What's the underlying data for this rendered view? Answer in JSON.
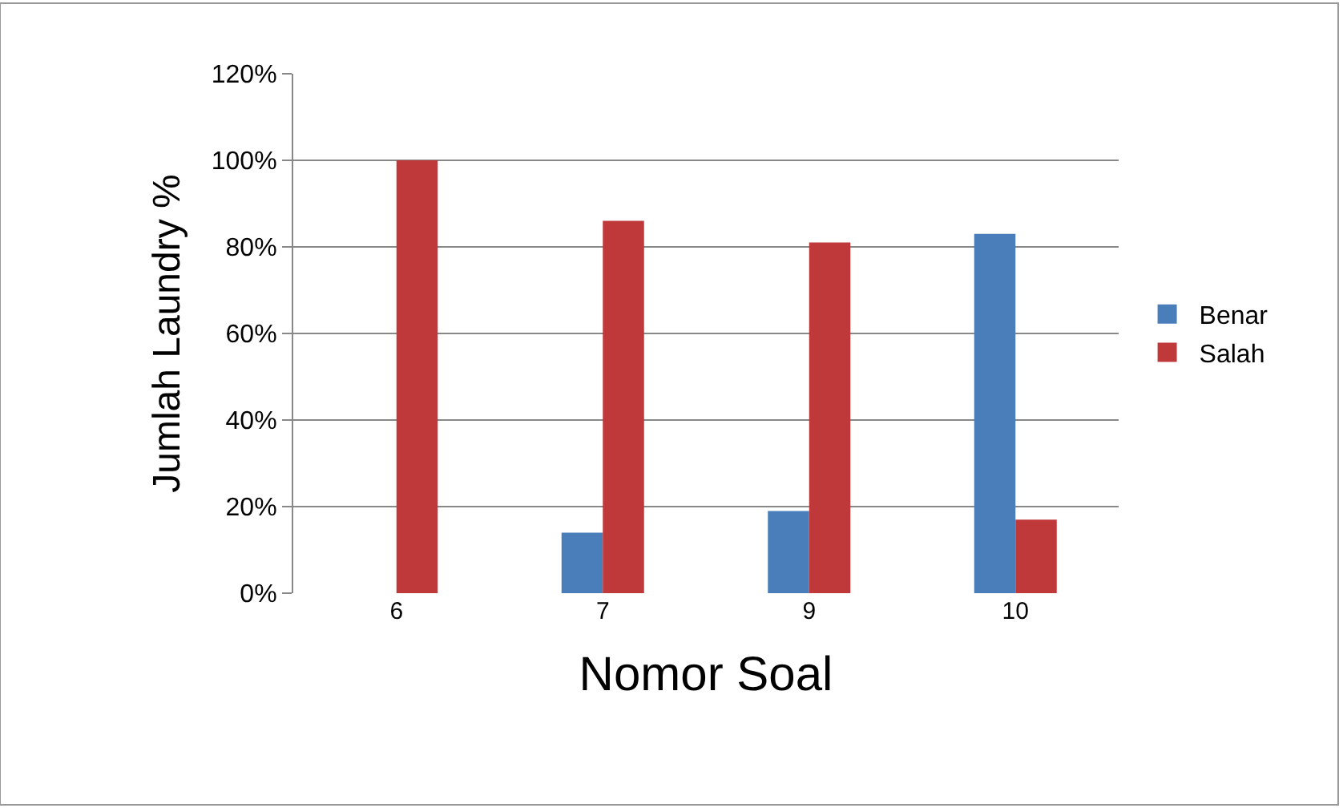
{
  "chart_data": {
    "type": "bar",
    "xlabel": "Nomor Soal",
    "ylabel": "Jumlah Laundry %",
    "categories": [
      "6",
      "7",
      "9",
      "10"
    ],
    "series": [
      {
        "name": "Benar",
        "color": "#4a7ebb",
        "values": [
          0,
          14,
          19,
          83
        ]
      },
      {
        "name": "Salah",
        "color": "#c0393a",
        "values": [
          100,
          86,
          81,
          17
        ]
      }
    ],
    "ylim": [
      0,
      120
    ],
    "yticks": [
      {
        "value": 0,
        "label": "0%"
      },
      {
        "value": 20,
        "label": "20%"
      },
      {
        "value": 40,
        "label": "40%"
      },
      {
        "value": 60,
        "label": "60%"
      },
      {
        "value": 80,
        "label": "80%"
      },
      {
        "value": 100,
        "label": "100%"
      },
      {
        "value": 120,
        "label": "120%"
      }
    ],
    "grid": "y",
    "legend": "right"
  }
}
